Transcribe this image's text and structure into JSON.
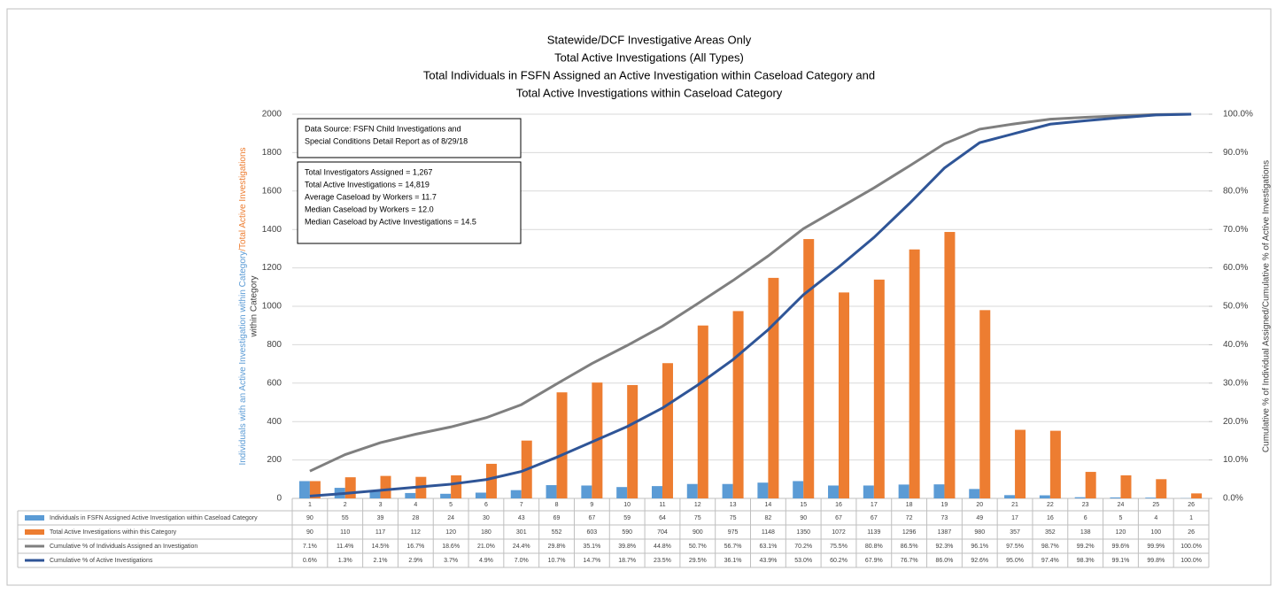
{
  "chart_data": {
    "type": "bar",
    "title": [
      "Statewide/DCF Investigative Areas Only",
      "Total Active Investigations (All Types)",
      "Total Individuals in FSFN Assigned an Active Investigation within Caseload Category and",
      "Total Active Investigations within Caseload Category"
    ],
    "ylabel": [
      "Individuals with an Active Investigation within Category",
      "/Total Active Investigations",
      "within Category"
    ],
    "ylabel_colors": [
      "#5b9bd5",
      "#ed7d31",
      "#ed7d31"
    ],
    "y2label": "Cumulative % of Individual Assigned/Cumulative % of Active Investigations",
    "y2label_color": "#2f5597",
    "annotations": [
      [
        "Data Source: FSFN Child Investigations and",
        "Special Conditions Detail Report as of 8/29/18"
      ],
      [
        "Total Investigators Assigned = 1,267",
        "Total Active Investigations = 14,819",
        "Average Caseload by Workers = 11.7",
        "Median Caseload by Workers = 12.0",
        "Median Caseload by Active Investigations = 14.5"
      ]
    ],
    "categories": [
      "1",
      "2",
      "3",
      "4",
      "5",
      "6",
      "7",
      "8",
      "9",
      "10",
      "11",
      "12",
      "13",
      "14",
      "15",
      "16",
      "17",
      "18",
      "19",
      "20",
      "21",
      "22",
      "23",
      "24",
      "25",
      "26"
    ],
    "ylim": [
      0,
      2000
    ],
    "yticks": [
      0,
      200,
      400,
      600,
      800,
      1000,
      1200,
      1400,
      1600,
      1800,
      2000
    ],
    "y2lim": [
      0,
      100
    ],
    "y2ticks": [
      {
        "value": 0,
        "label": "0.0%"
      },
      {
        "value": 10,
        "label": "10.0%"
      },
      {
        "value": 20,
        "label": "20.0%"
      },
      {
        "value": 30,
        "label": "30.0%"
      },
      {
        "value": 40,
        "label": "40.0%"
      },
      {
        "value": 50,
        "label": "50.0%"
      },
      {
        "value": 60,
        "label": "60.0%"
      },
      {
        "value": 70,
        "label": "70.0%"
      },
      {
        "value": 80,
        "label": "80.0%"
      },
      {
        "value": 90,
        "label": "90.0%"
      },
      {
        "value": 100,
        "label": "100.0%"
      }
    ],
    "grid": true,
    "series": [
      {
        "name": "Individuals in FSFN Assigned Active Investigation within Caseload Category",
        "type": "bar",
        "color": "#5b9bd5",
        "values": [
          90,
          55,
          39,
          28,
          24,
          30,
          43,
          69,
          67,
          59,
          64,
          75,
          75,
          82,
          90,
          67,
          67,
          72,
          73,
          49,
          17,
          16,
          6,
          5,
          4,
          1
        ]
      },
      {
        "name": "Total Active Investigations within this Category",
        "type": "bar",
        "color": "#ed7d31",
        "values": [
          90,
          110,
          117,
          112,
          120,
          180,
          301,
          552,
          603,
          590,
          704,
          900,
          975,
          1148,
          1350,
          1072,
          1139,
          1296,
          1387,
          980,
          357,
          352,
          138,
          120,
          100,
          26
        ]
      },
      {
        "name": "Cumulative % of Individuals Assigned an Investigation",
        "type": "line",
        "axis": "y2",
        "color": "#7f7f7f",
        "values": [
          7.1,
          11.4,
          14.5,
          16.7,
          18.6,
          21.0,
          24.4,
          29.8,
          35.1,
          39.8,
          44.8,
          50.7,
          56.7,
          63.1,
          70.2,
          75.5,
          80.8,
          86.5,
          92.3,
          96.1,
          97.5,
          98.7,
          99.2,
          99.6,
          99.9,
          100.0
        ],
        "value_labels": [
          "7.1%",
          "11.4%",
          "14.5%",
          "16.7%",
          "18.6%",
          "21.0%",
          "24.4%",
          "29.8%",
          "35.1%",
          "39.8%",
          "44.8%",
          "50.7%",
          "56.7%",
          "63.1%",
          "70.2%",
          "75.5%",
          "80.8%",
          "86.5%",
          "92.3%",
          "96.1%",
          "97.5%",
          "98.7%",
          "99.2%",
          "99.6%",
          "99.9%",
          "100.0%"
        ]
      },
      {
        "name": "Cumulative % of Active Investigations",
        "type": "line",
        "axis": "y2",
        "color": "#2f5597",
        "values": [
          0.6,
          1.3,
          2.1,
          2.9,
          3.7,
          4.9,
          7.0,
          10.7,
          14.7,
          18.7,
          23.5,
          29.5,
          36.1,
          43.9,
          53.0,
          60.2,
          67.9,
          76.7,
          86.0,
          92.6,
          95.0,
          97.4,
          98.3,
          99.1,
          99.8,
          100.0
        ],
        "value_labels": [
          "0.6%",
          "1.3%",
          "2.1%",
          "2.9%",
          "3.7%",
          "4.9%",
          "7.0%",
          "10.7%",
          "14.7%",
          "18.7%",
          "23.5%",
          "29.5%",
          "36.1%",
          "43.9%",
          "53.0%",
          "60.2%",
          "67.9%",
          "76.7%",
          "86.0%",
          "92.6%",
          "95.0%",
          "97.4%",
          "98.3%",
          "99.1%",
          "99.8%",
          "100.0%"
        ]
      }
    ]
  }
}
